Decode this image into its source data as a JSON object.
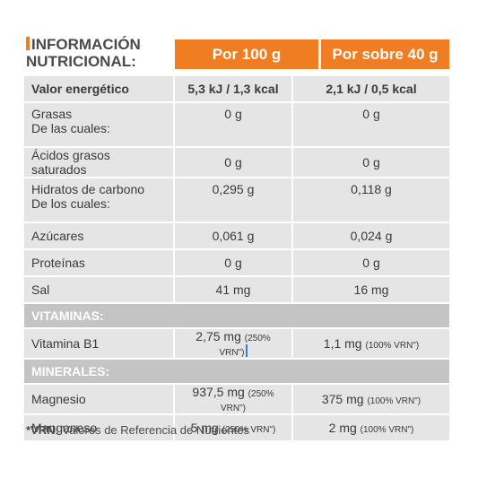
{
  "title": {
    "line1": "INFORMACIÓN",
    "line2": "NUTRICIONAL:"
  },
  "headers": {
    "col1": "Por 100 g",
    "col2": "Por sobre 40 g"
  },
  "rows": [
    {
      "name": "Valor energético",
      "v100": "5,3 kJ / 1,3 kcal",
      "v40": "2,1 kJ / 0,5 kcal"
    },
    {
      "name": "Grasas",
      "sub": "De las cuales:",
      "v100": "0 g",
      "v40": "0 g"
    },
    {
      "name": "Ácidos grasos saturados",
      "v100": "0 g",
      "v40": "0 g"
    },
    {
      "name": "Hidratos de carbono",
      "sub": "De los cuales:",
      "v100": "0,295 g",
      "v40": "0,118 g"
    },
    {
      "name": "Azúcares",
      "v100": "0,061 g",
      "v40": "0,024 g"
    },
    {
      "name": "Proteínas",
      "v100": "0 g",
      "v40": "0 g"
    },
    {
      "name": "Sal",
      "v100": "41 mg",
      "v40": "16 mg"
    }
  ],
  "vitaminas": {
    "label": "VITAMINAS:",
    "rows": [
      {
        "name": "Vitamina B1",
        "v100": "2,75 mg",
        "v100_vrn": "(250% VRN\")",
        "v40": "1,1 mg",
        "v40_vrn": "(100% VRN\")"
      }
    ]
  },
  "minerales": {
    "label": "MINERALES:",
    "rows": [
      {
        "name": "Magnesio",
        "v100": "937,5 mg",
        "v100_vrn": "(250% VRN\")",
        "v40": "375 mg",
        "v40_vrn": "(100% VRN\")"
      },
      {
        "name": "Manganeso",
        "v100": "5 mg",
        "v100_vrn": "(250% VRN\")",
        "v40": "2 mg",
        "v40_vrn": "(100% VRN\")"
      }
    ]
  },
  "footnote": {
    "term": "*VRN:",
    "text": "Valores de Referencia de Nutrientes"
  },
  "colors": {
    "accent": "#f07d22",
    "row": "#e5e5e5",
    "section": "#c4c4c4"
  }
}
